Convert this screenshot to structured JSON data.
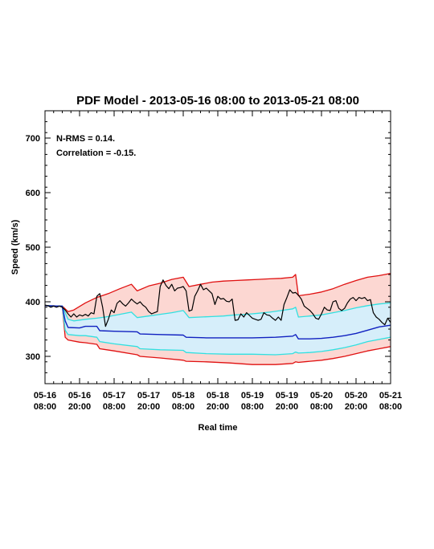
{
  "chart_data": {
    "type": "line",
    "title": "PDF Model - 2013-05-16 08:00 to 2013-05-21 08:00",
    "xlabel": "Real time",
    "ylabel": "Speed (km/s)",
    "xlim": [
      0,
      120
    ],
    "ylim": [
      250,
      750
    ],
    "x_ticks": [
      {
        "x": 0,
        "line1": "05-16",
        "line2": "08:00"
      },
      {
        "x": 12,
        "line1": "05-16",
        "line2": "20:00"
      },
      {
        "x": 24,
        "line1": "05-17",
        "line2": "08:00"
      },
      {
        "x": 36,
        "line1": "05-17",
        "line2": "20:00"
      },
      {
        "x": 48,
        "line1": "05-18",
        "line2": "08:00"
      },
      {
        "x": 60,
        "line1": "05-18",
        "line2": "20:00"
      },
      {
        "x": 72,
        "line1": "05-19",
        "line2": "08:00"
      },
      {
        "x": 84,
        "line1": "05-19",
        "line2": "20:00"
      },
      {
        "x": 96,
        "line1": "05-20",
        "line2": "08:00"
      },
      {
        "x": 108,
        "line1": "05-20",
        "line2": "20:00"
      },
      {
        "x": 120,
        "line1": "05-21",
        "line2": "08:00"
      }
    ],
    "y_ticks": [
      300,
      400,
      500,
      600,
      700
    ],
    "annotations": [
      "N-RMS = 0.14.",
      "Correlation = -0.15."
    ],
    "colors": {
      "outer_line": "#e01010",
      "outer_fill": "#fcd7d2",
      "inner_line": "#30e0e0",
      "inner_fill": "#d6eefa",
      "median": "#1020c0",
      "observed": "#000000"
    },
    "series": [
      {
        "role": "outer-upper",
        "x": [
          0,
          6,
          8,
          10,
          14,
          18,
          22,
          26,
          30,
          32,
          36,
          40,
          44,
          48,
          50,
          54,
          58,
          62,
          66,
          70,
          74,
          78,
          82,
          86,
          87,
          88,
          92,
          96,
          100,
          104,
          108,
          112,
          116,
          120
        ],
        "y": [
          393,
          392,
          382,
          385,
          398,
          408,
          415,
          424,
          432,
          420,
          429,
          434,
          441,
          445,
          428,
          432,
          436,
          438,
          439,
          440,
          441,
          442,
          443,
          445,
          450,
          411,
          414,
          418,
          424,
          432,
          439,
          445,
          448,
          452
        ]
      },
      {
        "role": "inner-upper",
        "x": [
          0,
          6,
          8,
          10,
          14,
          18,
          22,
          26,
          30,
          32,
          36,
          40,
          44,
          48,
          50,
          54,
          58,
          62,
          66,
          70,
          74,
          78,
          82,
          86,
          87,
          88,
          92,
          96,
          100,
          104,
          108,
          112,
          116,
          120
        ],
        "y": [
          393,
          392,
          368,
          365,
          368,
          370,
          373,
          377,
          381,
          371,
          374,
          377,
          380,
          384,
          371,
          372,
          373,
          374,
          376,
          377,
          379,
          381,
          384,
          387,
          390,
          372,
          374,
          376,
          380,
          384,
          389,
          393,
          396,
          398
        ]
      },
      {
        "role": "median",
        "x": [
          0,
          6,
          7,
          8,
          12,
          14,
          18,
          19,
          24,
          32,
          33,
          40,
          48,
          49,
          56,
          64,
          72,
          80,
          86,
          87,
          88,
          92,
          96,
          100,
          104,
          108,
          112,
          116,
          120
        ],
        "y": [
          393,
          392,
          365,
          353,
          352,
          355,
          355,
          347,
          346,
          345,
          341,
          340,
          339,
          335,
          334,
          334,
          334,
          335,
          337,
          340,
          332,
          332,
          333,
          335,
          338,
          342,
          348,
          354,
          357
        ]
      },
      {
        "role": "inner-lower",
        "x": [
          0,
          6,
          7,
          8,
          12,
          14,
          18,
          19,
          24,
          32,
          33,
          40,
          48,
          49,
          56,
          64,
          72,
          80,
          86,
          87,
          88,
          92,
          96,
          100,
          104,
          108,
          112,
          116,
          120
        ],
        "y": [
          393,
          392,
          348,
          340,
          338,
          338,
          335,
          327,
          323,
          318,
          314,
          312,
          311,
          307,
          305,
          304,
          304,
          303,
          305,
          308,
          306,
          307,
          309,
          312,
          316,
          321,
          327,
          331,
          335
        ]
      },
      {
        "role": "outer-lower",
        "x": [
          0,
          6,
          7,
          8,
          12,
          14,
          18,
          19,
          24,
          32,
          33,
          40,
          48,
          49,
          56,
          64,
          72,
          80,
          86,
          87,
          88,
          92,
          96,
          100,
          104,
          108,
          112,
          116,
          120
        ],
        "y": [
          393,
          392,
          335,
          330,
          326,
          325,
          322,
          314,
          310,
          303,
          300,
          297,
          293,
          291,
          290,
          288,
          285,
          285,
          287,
          290,
          289,
          291,
          293,
          296,
          300,
          305,
          310,
          314,
          318
        ]
      },
      {
        "role": "observed",
        "x": [
          0,
          1,
          2,
          3,
          4,
          5,
          6,
          7,
          8,
          9,
          10,
          11,
          12,
          13,
          14,
          15,
          16,
          17,
          18,
          19,
          20,
          21,
          22,
          23,
          24,
          25,
          26,
          27,
          28,
          29,
          30,
          31,
          32,
          33,
          34,
          35,
          36,
          37,
          38,
          39,
          40,
          41,
          42,
          43,
          44,
          45,
          46,
          47,
          48,
          49,
          50,
          51,
          52,
          53,
          54,
          55,
          56,
          57,
          58,
          59,
          60,
          61,
          62,
          63,
          64,
          65,
          66,
          67,
          68,
          69,
          70,
          71,
          72,
          73,
          74,
          75,
          76,
          77,
          78,
          79,
          80,
          81,
          82,
          83,
          84,
          85,
          86,
          87,
          88,
          89,
          90,
          91,
          92,
          93,
          94,
          95,
          96,
          97,
          98,
          99,
          100,
          101,
          102,
          103,
          104,
          105,
          106,
          107,
          108,
          109,
          110,
          111,
          112,
          113,
          114,
          115,
          116,
          117,
          118,
          119,
          120
        ],
        "y": [
          394,
          393,
          390,
          392,
          390,
          392,
          390,
          385,
          378,
          372,
          378,
          372,
          376,
          374,
          377,
          374,
          380,
          378,
          410,
          415,
          390,
          355,
          368,
          385,
          380,
          397,
          402,
          396,
          392,
          398,
          405,
          400,
          396,
          400,
          394,
          390,
          382,
          378,
          380,
          382,
          428,
          440,
          430,
          424,
          432,
          420,
          425,
          426,
          428,
          420,
          383,
          385,
          410,
          420,
          432,
          422,
          425,
          420,
          415,
          395,
          410,
          405,
          406,
          401,
          400,
          405,
          366,
          367,
          378,
          372,
          380,
          375,
          370,
          368,
          366,
          368,
          380,
          376,
          375,
          370,
          366,
          372,
          366,
          395,
          408,
          422,
          416,
          417,
          412,
          405,
          392,
          388,
          384,
          378,
          370,
          368,
          378,
          390,
          385,
          384,
          400,
          402,
          388,
          384,
          388,
          398,
          405,
          408,
          402,
          408,
          406,
          408,
          402,
          404,
          380,
          372,
          368,
          362,
          358,
          370,
          362
        ]
      }
    ]
  }
}
